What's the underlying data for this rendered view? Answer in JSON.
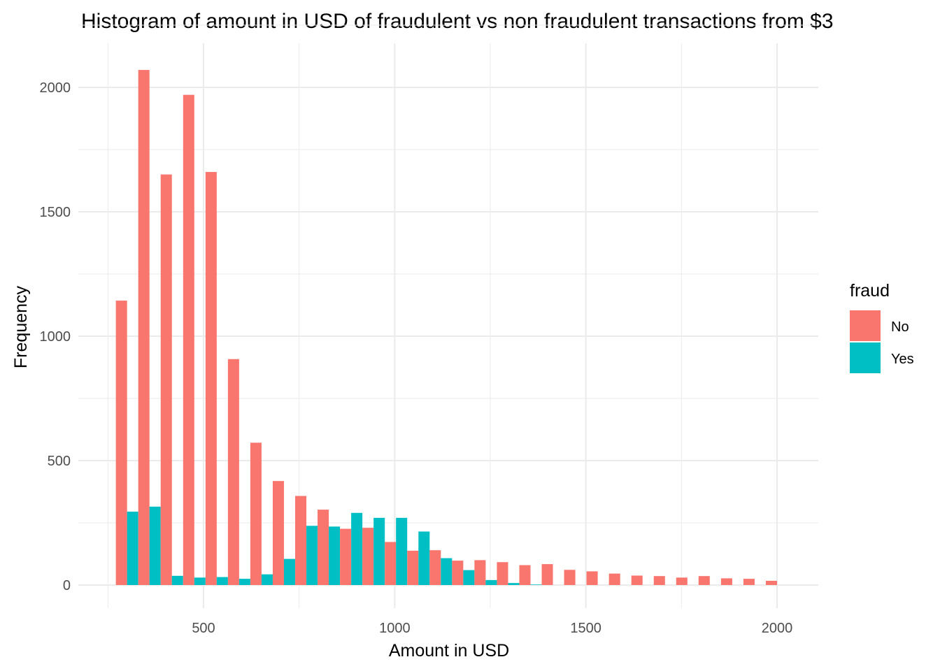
{
  "chart_data": {
    "type": "bar",
    "title": "Histogram of amount in USD of fraudulent vs non fraudulent transactions from $3",
    "xlabel": "Amount in USD",
    "ylabel": "Frequency",
    "xlim": [
      300,
      2000
    ],
    "ylim": [
      0,
      2150
    ],
    "x_ticks": [
      500,
      1000,
      1500,
      2000
    ],
    "y_ticks": [
      0,
      500,
      1000,
      1500,
      2000
    ],
    "bin_width": 58.6,
    "bin_centers": [
      300,
      358.6,
      417.2,
      475.9,
      534.5,
      593.1,
      651.7,
      710.3,
      769,
      827.6,
      886.2,
      944.8,
      1003.4,
      1062.1,
      1120.7,
      1179.3,
      1237.9,
      1296.6,
      1355.2,
      1413.8,
      1472.4,
      1531,
      1589.7,
      1648.3,
      1706.9,
      1765.5,
      1824.1,
      1882.8,
      1941.4,
      2000
    ],
    "legend": {
      "title": "fraud",
      "position": "right"
    },
    "grid": true,
    "series": [
      {
        "name": "No",
        "color": "#F8766D",
        "values": [
          1143,
          2070,
          1650,
          1970,
          1660,
          908,
          572,
          418,
          358,
          303,
          226,
          230,
          173,
          138,
          140,
          98,
          100,
          92,
          80,
          84,
          61,
          55,
          46,
          38,
          36,
          30,
          36,
          27,
          25,
          17
        ]
      },
      {
        "name": "Yes",
        "color": "#00BFC4",
        "values": [
          295,
          315,
          37,
          30,
          32,
          25,
          43,
          105,
          238,
          235,
          290,
          270,
          270,
          215,
          108,
          60,
          20,
          8,
          2,
          0,
          0,
          0,
          0,
          0,
          0,
          0,
          0,
          0,
          0,
          0
        ]
      }
    ]
  }
}
